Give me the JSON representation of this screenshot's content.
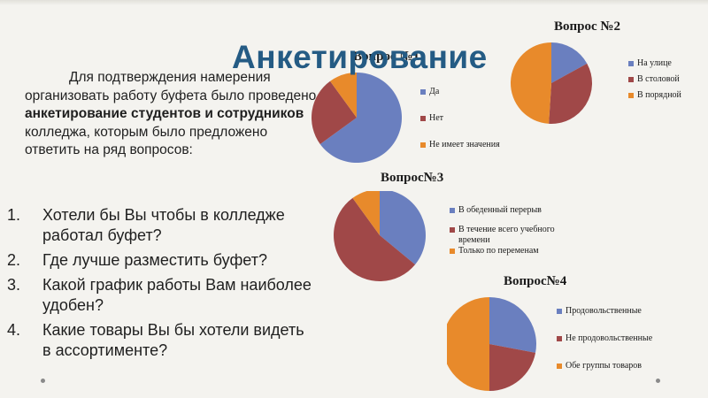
{
  "slide": {
    "title": "Анкетирование",
    "intro": {
      "part1": "Для подтверждения намерения организовать работу буфета было проведено ",
      "bold": "анкетирование студентов и сотрудников",
      "part2": " колледжа, которым было предложено ответить на ряд вопросов:"
    },
    "questions": [
      {
        "num": "1.",
        "text": "Хотели бы Вы чтобы в колледже работал буфет?"
      },
      {
        "num": "2.",
        "text": "Где лучше разместить буфет?"
      },
      {
        "num": "3.",
        "text": "Какой график работы Вам наиболее удобен?"
      },
      {
        "num": "4.",
        "text": "Какие товары Вы бы хотели видеть в ассортименте?"
      }
    ]
  },
  "colors": {
    "blue": "#6a7fbf",
    "red": "#a04848",
    "orange": "#e88a2b",
    "title": "#245b84"
  },
  "chart_data": [
    {
      "type": "pie",
      "title": "Вопрос №1",
      "labels": [
        "Да",
        "Нет",
        "Не имеет значения"
      ],
      "values": [
        65,
        25,
        10
      ]
    },
    {
      "type": "pie",
      "title": "Вопрос №2",
      "labels": [
        "На улице",
        "В столовой",
        "В порядной"
      ],
      "values": [
        17,
        34,
        49
      ]
    },
    {
      "type": "pie",
      "title": "Вопрос№3",
      "labels": [
        "В обеденный перерыв",
        "В течение всего учебного времени",
        "Только по переменам"
      ],
      "values": [
        36,
        54,
        10
      ]
    },
    {
      "type": "pie",
      "title": "Вопрос№4",
      "labels": [
        "Продовольственные",
        "Не продовольственные",
        "Обе группы товаров"
      ],
      "values": [
        28,
        22,
        50
      ]
    }
  ]
}
